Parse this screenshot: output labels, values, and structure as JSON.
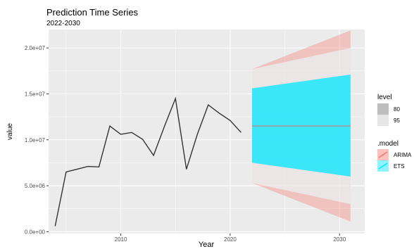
{
  "chart_data": {
    "type": "line",
    "title": "Prediction Time Series",
    "subtitle": "2022-2030",
    "xlabel": "Year",
    "ylabel": "value",
    "xlim": [
      2003.4,
      2032.3
    ],
    "ylim": [
      -200000,
      22000000
    ],
    "x_ticks": [
      2010,
      2020,
      2030
    ],
    "x_tick_labels": [
      "2010",
      "2020",
      "2030"
    ],
    "y_ticks": [
      0,
      5000000,
      10000000,
      15000000,
      20000000
    ],
    "y_tick_labels": [
      "0.0e+00",
      "5.0e+06",
      "1.0e+07",
      "1.5e+07",
      "2.0e+07"
    ],
    "grid": true,
    "history": {
      "x": [
        2004,
        2005,
        2006,
        2007,
        2008,
        2009,
        2010,
        2011,
        2012,
        2013,
        2014,
        2015,
        2016,
        2017,
        2018,
        2019,
        2020,
        2021
      ],
      "y": [
        600000,
        6500000,
        6800000,
        7100000,
        7050000,
        11500000,
        10600000,
        10800000,
        10050000,
        8300000,
        11500000,
        14500000,
        6800000,
        10600000,
        13800000,
        12900000,
        12100000,
        10800000
      ]
    },
    "forecast": {
      "x": [
        2022,
        2031
      ],
      "point": 11500000,
      "series": [
        {
          "name": "ARIMA",
          "color": "#f8766d",
          "lo80": [
            7500000,
            3000000
          ],
          "hi80": [
            15600000,
            20000000
          ],
          "lo95": [
            5300000,
            1100000
          ],
          "hi95": [
            17700000,
            21900000
          ]
        },
        {
          "name": "ETS",
          "color": "#00e5ff",
          "lo80": [
            7500000,
            6000000
          ],
          "hi80": [
            15600000,
            17100000
          ],
          "lo95": [
            5300000,
            3000000
          ],
          "hi95": [
            17700000,
            20000000
          ]
        }
      ]
    },
    "legend": {
      "placement": "right",
      "level_title": "level",
      "levels": [
        "80",
        "95"
      ],
      "model_title": ".model",
      "models": [
        "ARIMA",
        "ETS"
      ],
      "level_colors": [
        "#bdbdbd",
        "#e6e6e6"
      ],
      "model_colors": [
        "#f8766d",
        "#00e5ff"
      ]
    },
    "colors": {
      "panel": "#ebebeb",
      "grid": "#ffffff",
      "history_line": "#333333",
      "point_forecast": "#8fa8ad"
    }
  }
}
